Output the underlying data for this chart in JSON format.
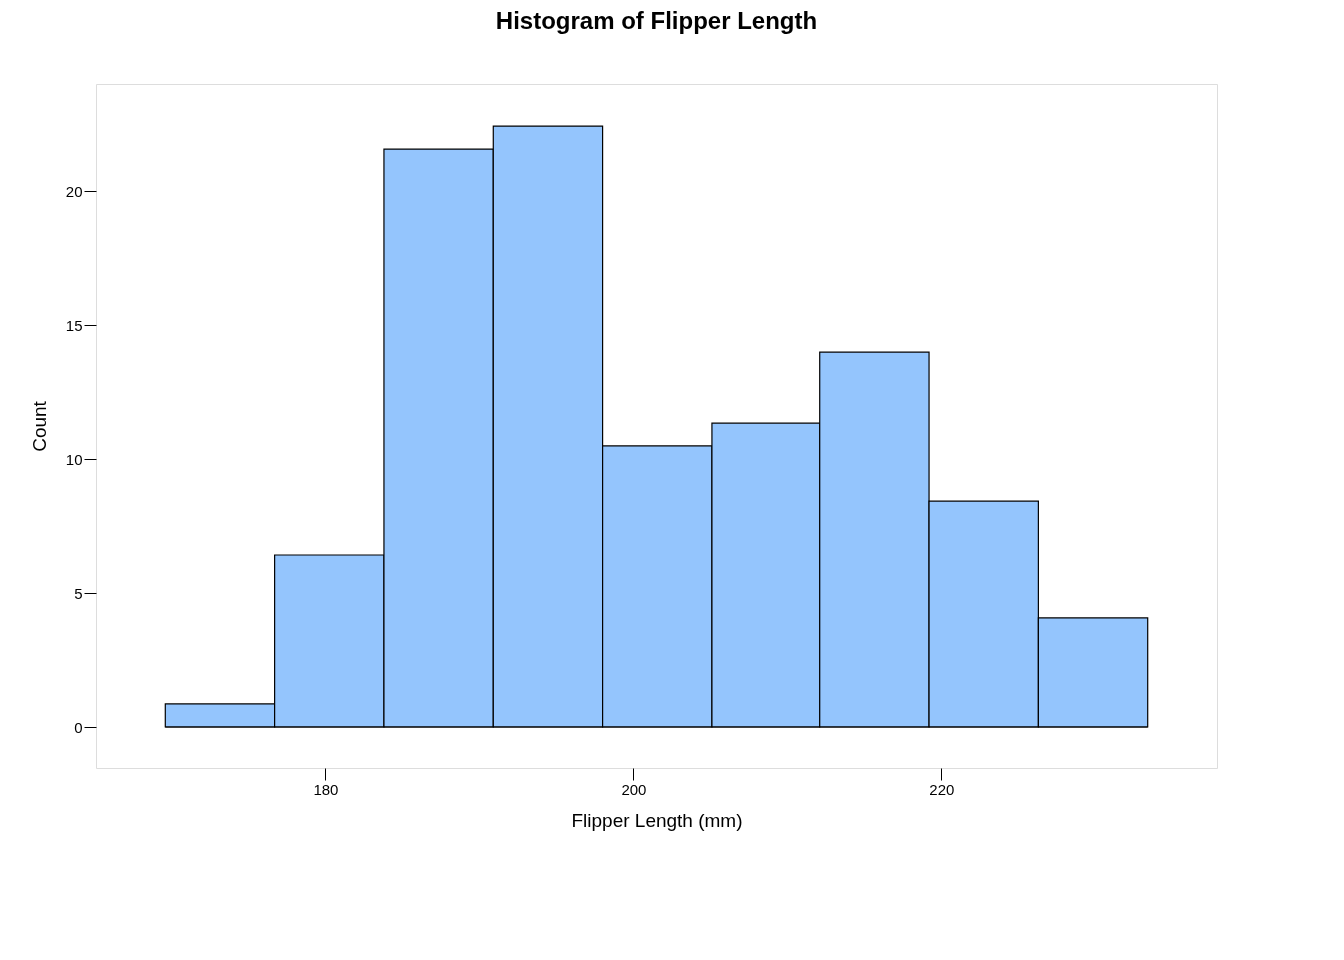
{
  "chart_data": {
    "type": "histogram",
    "title": "Histogram of Flipper Length",
    "xlabel": "Flipper Length (mm)",
    "ylabel": "Count",
    "bins": [
      169.6,
      176.7,
      183.8,
      190.9,
      198.0,
      205.1,
      212.1,
      219.2,
      226.3,
      233.4
    ],
    "values": [
      0.86,
      6.42,
      21.57,
      22.43,
      10.49,
      11.34,
      13.99,
      8.43,
      4.07
    ],
    "color": "#94c5fd",
    "xlim": [
      165.1,
      237.9
    ],
    "xticks": [
      180,
      200,
      220
    ],
    "ylim": [
      -1.53,
      24
    ],
    "yticks": [
      0,
      5,
      10,
      15,
      20
    ],
    "ref_lines": [
      {
        "axis": "y",
        "value": 0,
        "color": "#000000"
      }
    ],
    "grid": false
  }
}
